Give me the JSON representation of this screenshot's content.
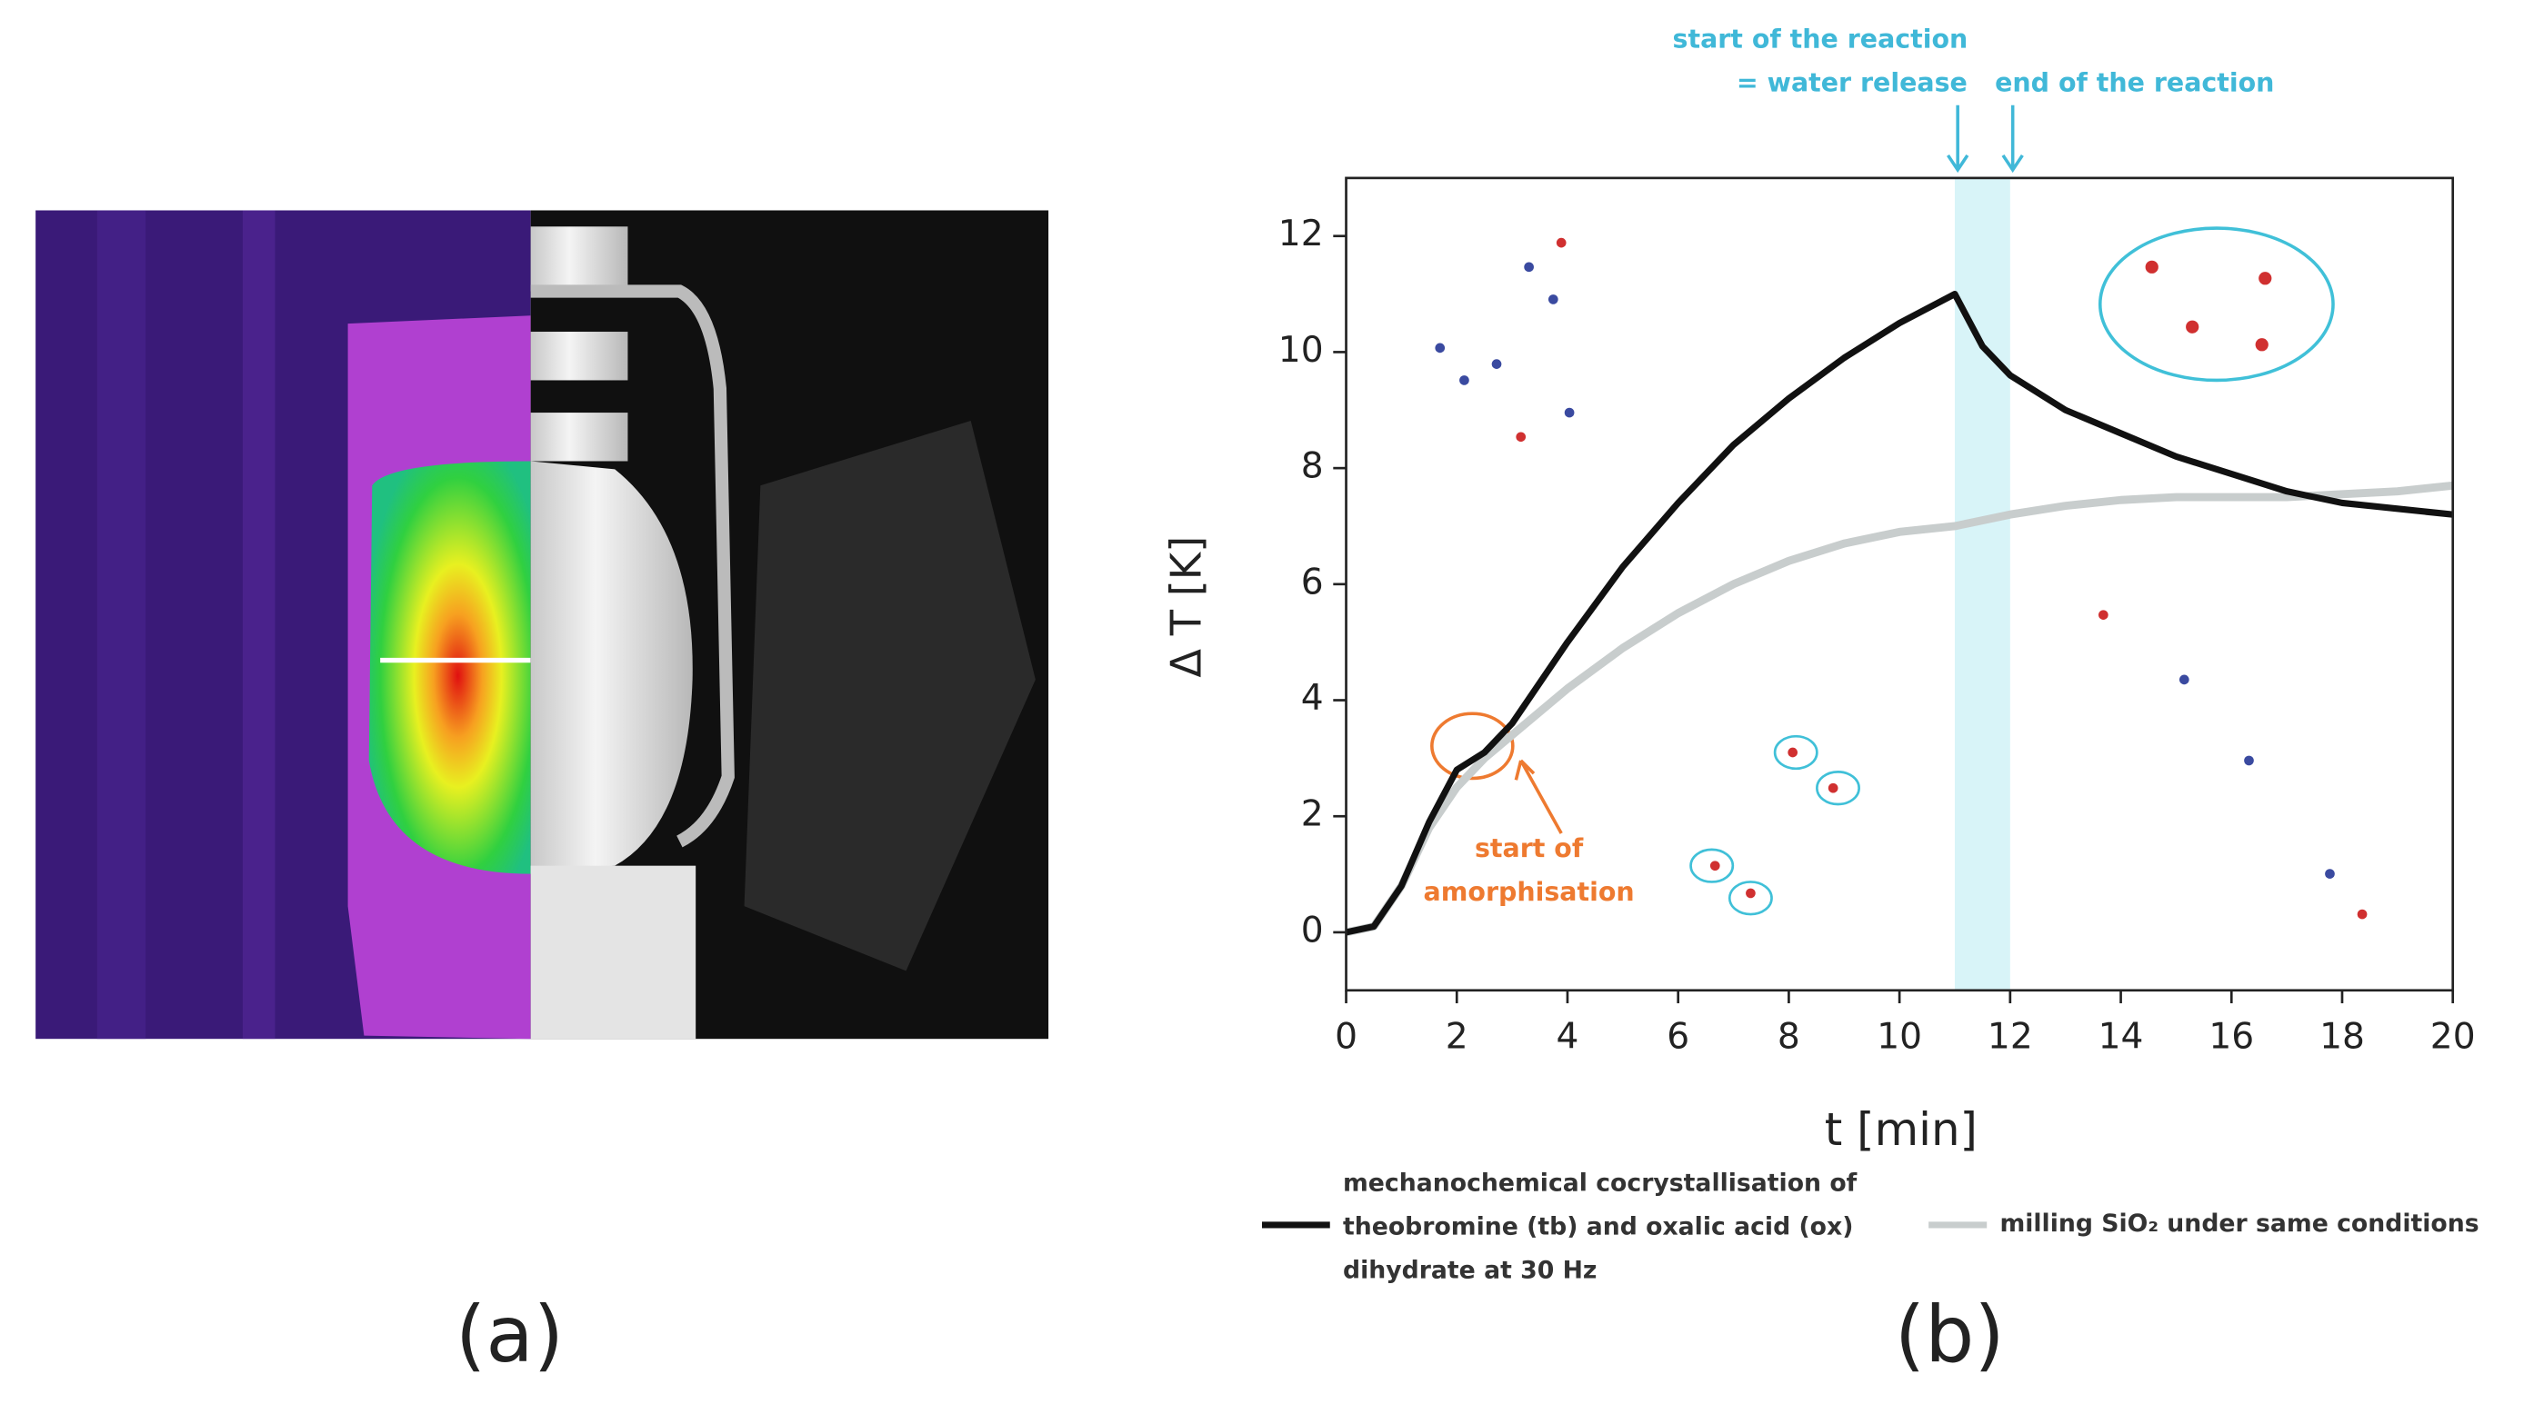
{
  "panel_a": {
    "label": "(a)"
  },
  "chart_data": {
    "type": "line",
    "panel_label": "(b)",
    "xlabel": "t [min]",
    "ylabel": "Δ T [K]",
    "x": [
      0,
      0.5,
      1,
      1.5,
      2,
      2.5,
      3,
      4,
      5,
      6,
      7,
      8,
      9,
      10,
      11,
      11.5,
      12,
      13,
      14,
      15,
      16,
      17,
      18,
      19,
      20
    ],
    "series": [
      {
        "name": "mechanochemical cocrystallisation of theobromine (tb) and oxalic acid (ox) dihydrate at 30 Hz",
        "color": "#111111",
        "values": [
          0,
          0.1,
          0.8,
          1.9,
          2.8,
          3.1,
          3.6,
          5.0,
          6.3,
          7.4,
          8.4,
          9.2,
          9.9,
          10.5,
          11.0,
          10.1,
          9.6,
          9.0,
          8.6,
          8.2,
          7.9,
          7.6,
          7.4,
          7.3,
          7.2
        ]
      },
      {
        "name": "milling SiO₂ under same conditions",
        "color": "#c8cdcd",
        "values": [
          0,
          0.1,
          0.8,
          1.8,
          2.5,
          3.0,
          3.4,
          4.2,
          4.9,
          5.5,
          6.0,
          6.4,
          6.7,
          6.9,
          7.0,
          7.1,
          7.2,
          7.35,
          7.45,
          7.5,
          7.5,
          7.5,
          7.55,
          7.6,
          7.7
        ]
      }
    ],
    "xlim": [
      0,
      20
    ],
    "ylim": [
      -1,
      13
    ],
    "xticks": [
      0,
      2,
      4,
      6,
      8,
      10,
      12,
      14,
      16,
      18,
      20
    ],
    "yticks": [
      0,
      2,
      4,
      6,
      8,
      10,
      12
    ],
    "shade": [
      11,
      12
    ],
    "shade_color": "#d8f4f8",
    "annotations": {
      "start_reaction": "start of the reaction",
      "water_release": "= water release",
      "end_reaction": "end of the reaction",
      "amorph_1": "start of",
      "amorph_2": "amorphisation"
    }
  }
}
